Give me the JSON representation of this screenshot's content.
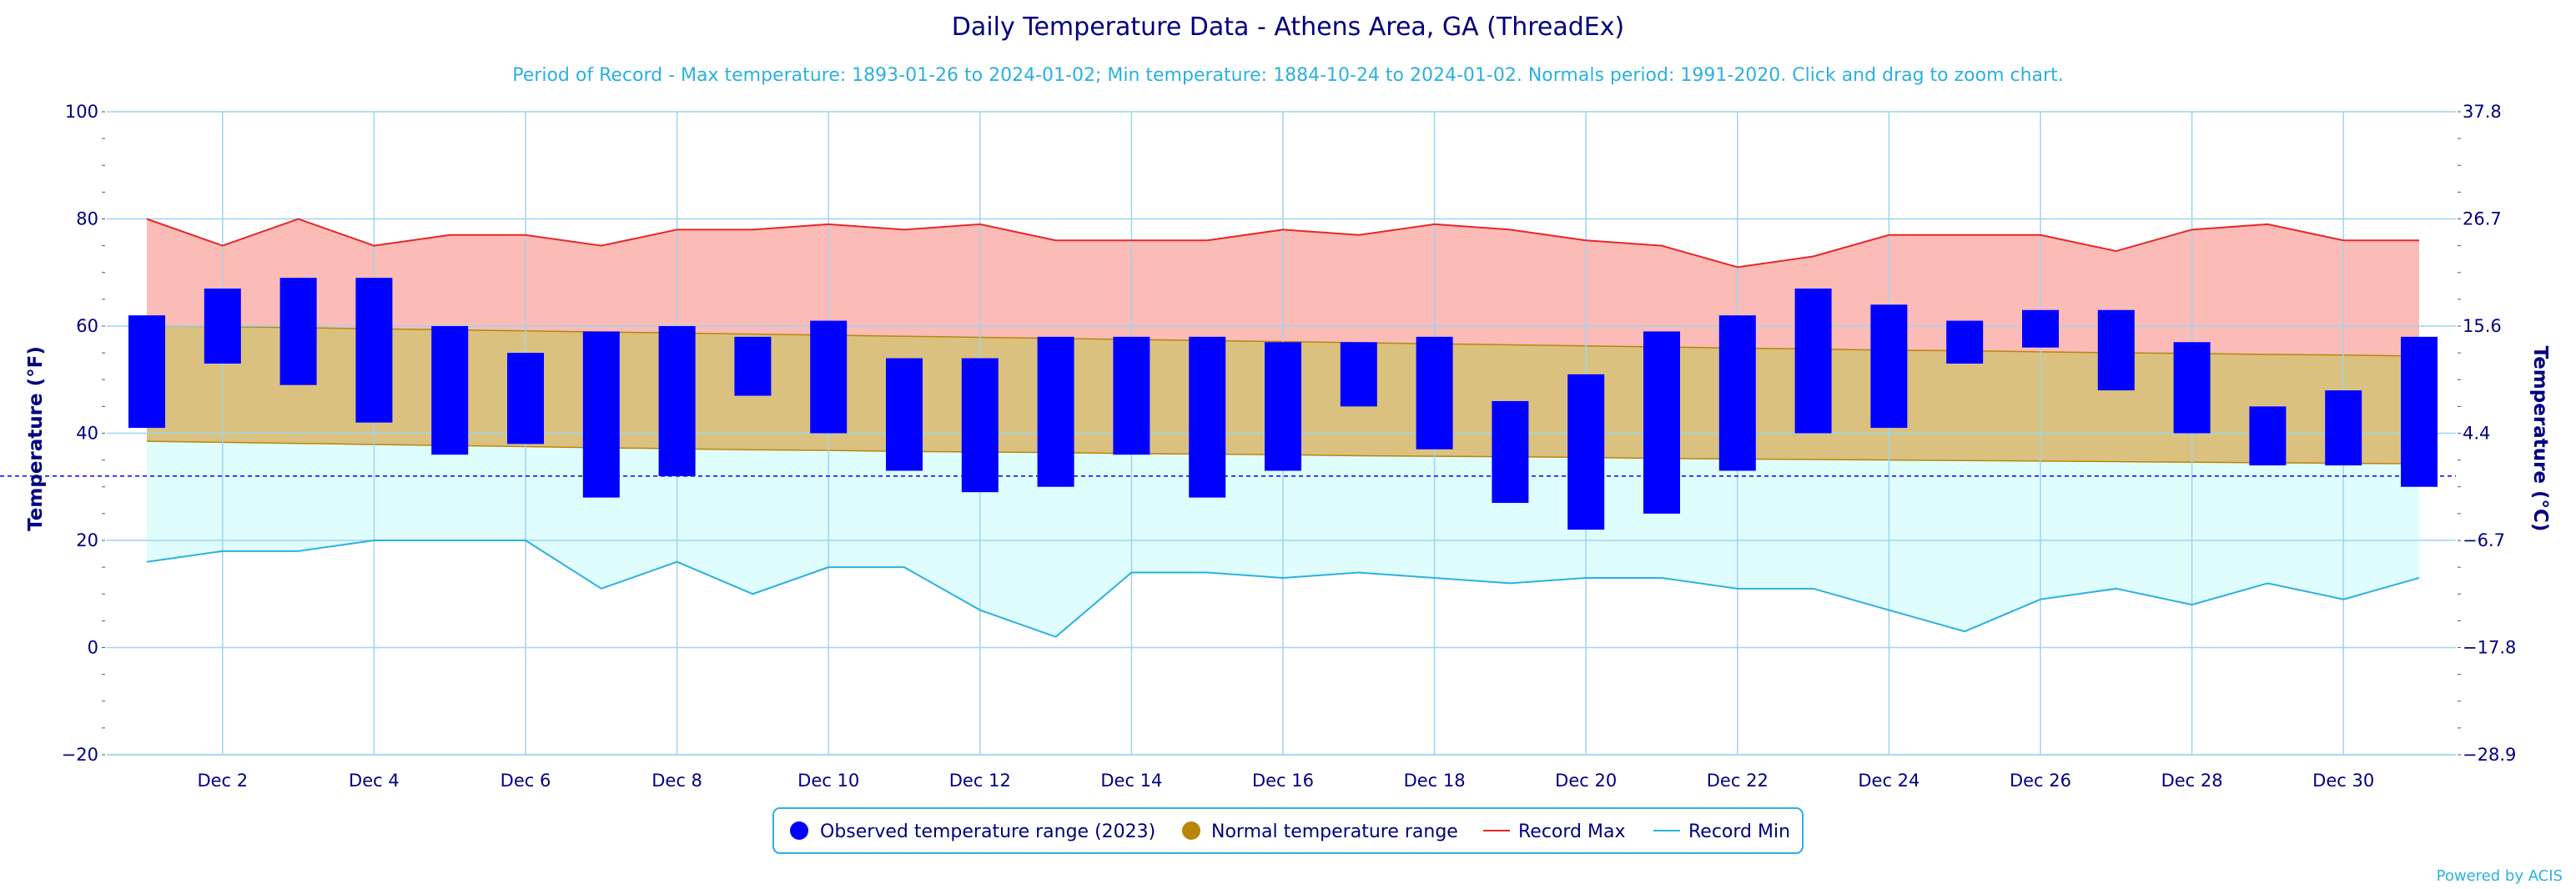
{
  "chart_data": {
    "type": "bar",
    "title": "Daily Temperature Data - Athens Area, GA (ThreadEx)",
    "subtitle": "Period of Record - Max temperature: 1893-01-26 to 2024-01-02; Min temperature: 1884-10-24 to 2024-01-02. Normals period: 1991-2020. Click and drag to zoom chart.",
    "ylabel": "Temperature (°F)",
    "ylabel_right": "Temperature (°C)",
    "ylim": [
      -20,
      100
    ],
    "yticks": [
      -20,
      0,
      20,
      40,
      60,
      80,
      100
    ],
    "yticks_right": [
      "-28.9",
      "-17.8",
      "-6.7",
      "4.4",
      "15.6",
      "26.7",
      "37.8"
    ],
    "x": [
      1,
      2,
      3,
      4,
      5,
      6,
      7,
      8,
      9,
      10,
      11,
      12,
      13,
      14,
      15,
      16,
      17,
      18,
      19,
      20,
      21,
      22,
      23,
      24,
      25,
      26,
      27,
      28,
      29,
      30,
      31
    ],
    "xticks": [
      "Dec 2",
      "Dec 4",
      "Dec 6",
      "Dec 8",
      "Dec 10",
      "Dec 12",
      "Dec 14",
      "Dec 16",
      "Dec 18",
      "Dec 20",
      "Dec 22",
      "Dec 24",
      "Dec 26",
      "Dec 28",
      "Dec 30"
    ],
    "xtick_days": [
      2,
      4,
      6,
      8,
      10,
      12,
      14,
      16,
      18,
      20,
      22,
      24,
      26,
      28,
      30
    ],
    "freezing_line": 32,
    "grid": true,
    "legend_position": "bottom-center",
    "series": [
      {
        "name": "Observed temperature range (2023)",
        "low": [
          41,
          53,
          49,
          42,
          36,
          38,
          28,
          32,
          47,
          40,
          33,
          29,
          30,
          36,
          28,
          33,
          45,
          37,
          27,
          22,
          25,
          33,
          40,
          41,
          53,
          56,
          48,
          40,
          34,
          34,
          30
        ],
        "high": [
          62,
          67,
          69,
          69,
          60,
          55,
          59,
          60,
          58,
          61,
          54,
          54,
          58,
          58,
          58,
          57,
          57,
          58,
          46,
          51,
          59,
          62,
          67,
          64,
          61,
          63,
          63,
          57,
          45,
          48,
          58
        ]
      },
      {
        "name": "Normal temperature range",
        "low": [
          38.5,
          38.3,
          38.1,
          37.9,
          37.7,
          37.5,
          37.3,
          37.1,
          36.9,
          36.8,
          36.6,
          36.5,
          36.4,
          36.2,
          36.1,
          36.0,
          35.8,
          35.7,
          35.6,
          35.5,
          35.3,
          35.2,
          35.1,
          35.0,
          34.9,
          34.8,
          34.7,
          34.6,
          34.5,
          34.4,
          34.3
        ],
        "high": [
          60.0,
          59.9,
          59.7,
          59.5,
          59.3,
          59.1,
          58.9,
          58.7,
          58.5,
          58.3,
          58.1,
          57.9,
          57.7,
          57.5,
          57.3,
          57.1,
          56.9,
          56.7,
          56.5,
          56.3,
          56.1,
          55.9,
          55.7,
          55.5,
          55.4,
          55.2,
          55.0,
          54.9,
          54.7,
          54.6,
          54.4
        ]
      },
      {
        "name": "Record Max",
        "values": [
          80,
          75,
          80,
          75,
          77,
          77,
          75,
          78,
          78,
          79,
          78,
          79,
          76,
          76,
          76,
          78,
          77,
          79,
          78,
          76,
          75,
          71,
          73,
          77,
          77,
          77,
          74,
          78,
          79,
          76,
          76
        ]
      },
      {
        "name": "Record Min",
        "values": [
          16,
          18,
          18,
          20,
          20,
          20,
          11,
          16,
          10,
          15,
          15,
          7,
          2,
          14,
          14,
          13,
          14,
          13,
          12,
          13,
          13,
          11,
          11,
          7,
          3,
          9,
          11,
          8,
          12,
          9,
          13
        ]
      }
    ],
    "colors": {
      "observed": "#0000ff",
      "normal": "#b8860b",
      "normal_fill": "#dbc17f",
      "record_max": "#e8262a",
      "record_max_fill": "#fbbbb6",
      "record_min": "#2bb0e0",
      "record_min_fill": "#dffdfd",
      "grid": "#9fd4ef",
      "axis_text": "#000080",
      "freezing": "#0000ff"
    }
  },
  "credit": "Powered by ACIS"
}
